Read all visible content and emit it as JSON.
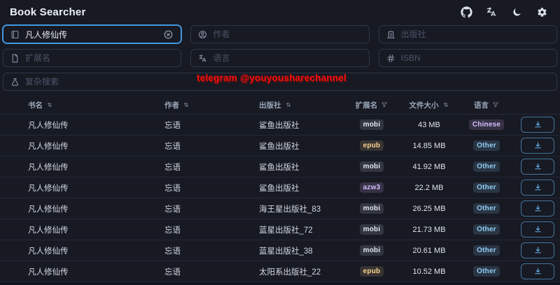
{
  "app": {
    "title": "Book Searcher"
  },
  "header": {
    "icons": [
      "github",
      "translate",
      "dark-mode",
      "settings"
    ]
  },
  "search": {
    "title": {
      "placeholder": "书名",
      "value": "凡人修仙传"
    },
    "author": {
      "placeholder": "作者",
      "value": ""
    },
    "publisher": {
      "placeholder": "出版社",
      "value": ""
    },
    "extension": {
      "placeholder": "扩展名",
      "value": ""
    },
    "language": {
      "placeholder": "语言",
      "value": ""
    },
    "isbn": {
      "placeholder": "ISBN",
      "value": ""
    },
    "complex": {
      "placeholder": "复杂搜索",
      "value": ""
    }
  },
  "watermark": {
    "text": "telegram @youyousharechannel",
    "color": "#fb0d0d"
  },
  "table": {
    "columns": [
      {
        "label": "书名",
        "control": "sort"
      },
      {
        "label": "作者",
        "control": "sort"
      },
      {
        "label": "出版社",
        "control": "sort"
      },
      {
        "label": "扩展名",
        "control": "filter"
      },
      {
        "label": "文件大小",
        "control": "sort"
      },
      {
        "label": "语言",
        "control": "filter"
      }
    ],
    "download_icon": "download-icon",
    "rows": [
      {
        "title": "凡人修仙传",
        "author": "忘语",
        "publisher": "鲨鱼出版社",
        "extension": "mobi",
        "extension_variant": "gray",
        "size": "43 MB",
        "language": "Chinese",
        "language_variant": "purple"
      },
      {
        "title": "凡人修仙传",
        "author": "忘语",
        "publisher": "鲨鱼出版社",
        "extension": "epub",
        "extension_variant": "orange",
        "size": "14.85 MB",
        "language": "Other",
        "language_variant": "blue"
      },
      {
        "title": "凡人修仙传",
        "author": "忘语",
        "publisher": "鲨鱼出版社",
        "extension": "mobi",
        "extension_variant": "gray",
        "size": "41.92 MB",
        "language": "Other",
        "language_variant": "blue"
      },
      {
        "title": "凡人修仙传",
        "author": "忘语",
        "publisher": "鲨鱼出版社",
        "extension": "azw3",
        "extension_variant": "purple",
        "size": "22.2 MB",
        "language": "Other",
        "language_variant": "blue"
      },
      {
        "title": "凡人修仙传",
        "author": "忘语",
        "publisher": "海王星出版社_83",
        "extension": "mobi",
        "extension_variant": "gray",
        "size": "26.25 MB",
        "language": "Other",
        "language_variant": "blue"
      },
      {
        "title": "凡人修仙传",
        "author": "忘语",
        "publisher": "蓝星出版社_72",
        "extension": "mobi",
        "extension_variant": "gray",
        "size": "21.73 MB",
        "language": "Other",
        "language_variant": "blue"
      },
      {
        "title": "凡人修仙传",
        "author": "忘语",
        "publisher": "蓝星出版社_38",
        "extension": "mobi",
        "extension_variant": "gray",
        "size": "20.61 MB",
        "language": "Other",
        "language_variant": "blue"
      },
      {
        "title": "凡人修仙传",
        "author": "忘语",
        "publisher": "太阳系出版社_22",
        "extension": "epub",
        "extension_variant": "orange",
        "size": "10.52 MB",
        "language": "Other",
        "language_variant": "blue"
      }
    ]
  },
  "theme": {
    "background": "#171923",
    "accent_blue": "#63b3ed",
    "focus_ring": "#4299e1",
    "divider": "#212a38",
    "badge_gray": "#dfe5ed",
    "badge_orange": "#fbd38d",
    "badge_purple": "#d6bcfa",
    "badge_blue": "#90cdf4",
    "watermark_red": "#fb0d0d"
  }
}
